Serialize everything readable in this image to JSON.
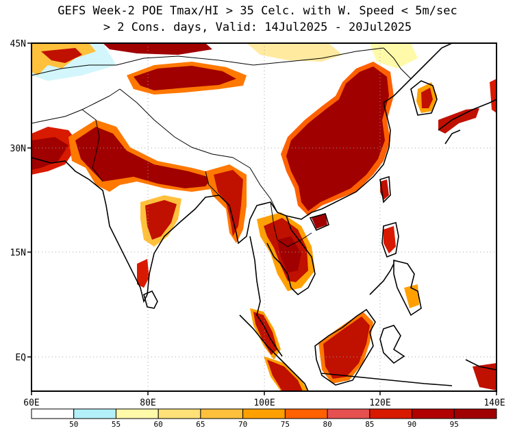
{
  "title": {
    "line1": "GEFS Week-2 POE Tmax/HI > 35 Celc. with W. Speed < 5m/sec",
    "line2": "> 2 Cons. days, Valid: 14Jul2025 - 20Jul2025"
  },
  "map": {
    "lon_labels": [
      "60E",
      "80E",
      "100E",
      "120E",
      "140E"
    ],
    "lat_labels": [
      "45N",
      "30N",
      "15N",
      "EQ"
    ]
  },
  "colorbar": {
    "labels": [
      "50",
      "55",
      "60",
      "65",
      "70",
      "75",
      "80",
      "85",
      "90",
      "95"
    ],
    "colors": [
      "#ffffff",
      "#b4f0fa",
      "#fffaaa",
      "#ffe178",
      "#ffc03c",
      "#ffa000",
      "#ff6000",
      "#e65050",
      "#d81a00",
      "#b00000",
      "#a00000"
    ]
  },
  "palette": {
    "dark_red": "#a00000",
    "red": "#c01000",
    "orange": "#ff7800",
    "yellow": "#ffe178",
    "cyan": "#b4f0fa",
    "coast": "#000000",
    "grid": "#a0a0a0"
  }
}
